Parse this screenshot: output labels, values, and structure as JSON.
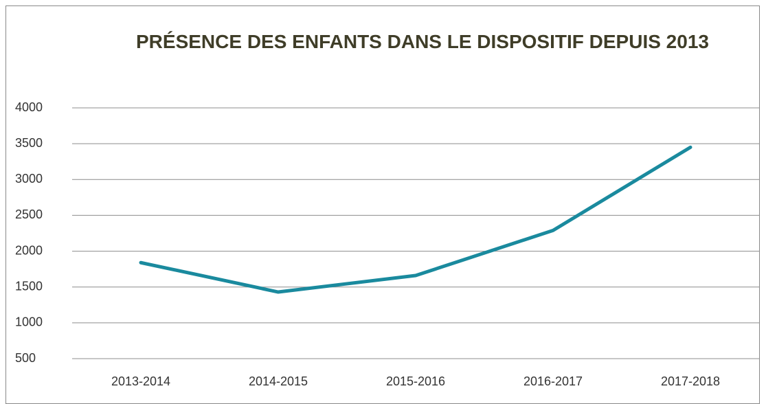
{
  "chart_data": {
    "type": "line",
    "title": "PRÉSENCE DES ENFANTS DANS LE DISPOSITIF DEPUIS 2013",
    "categories": [
      "2013-2014",
      "2014-2015",
      "2015-2016",
      "2016-2017",
      "2017-2018"
    ],
    "series": [
      {
        "color": "#1a8a9e",
        "values": [
          1840,
          1430,
          1660,
          2290,
          3450
        ]
      }
    ],
    "ylim": [
      500,
      4000
    ],
    "yticks": [
      500,
      1000,
      1500,
      2000,
      2500,
      3000,
      3500,
      4000
    ],
    "grid": true
  }
}
